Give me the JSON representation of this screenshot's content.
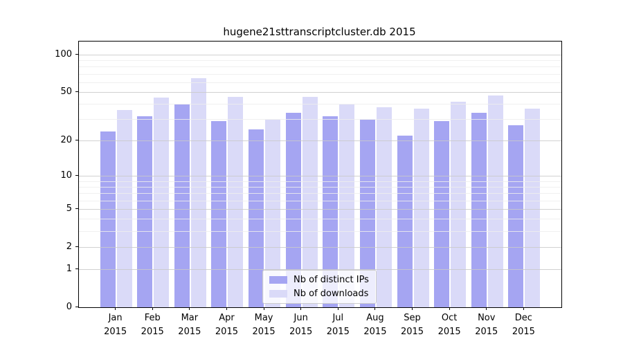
{
  "chart_data": {
    "type": "bar",
    "title": "hugene21sttranscriptcluster.db 2015",
    "months": [
      "Jan",
      "Feb",
      "Mar",
      "Apr",
      "May",
      "Jun",
      "Jul",
      "Aug",
      "Sep",
      "Oct",
      "Nov",
      "Dec"
    ],
    "year": "2015",
    "categories": [
      "Jan 2015",
      "Feb 2015",
      "Mar 2015",
      "Apr 2015",
      "May 2015",
      "Jun 2015",
      "Jul 2015",
      "Aug 2015",
      "Sep 2015",
      "Oct 2015",
      "Nov 2015",
      "Dec 2015"
    ],
    "series": [
      {
        "name": "Nb of distinct IPs",
        "color": "#a5a5f2",
        "values": [
          24,
          32,
          40,
          29,
          25,
          34,
          32,
          30,
          22,
          29,
          34,
          27
        ]
      },
      {
        "name": "Nb of downloads",
        "color": "#dadaf8",
        "values": [
          36,
          45,
          65,
          46,
          30,
          46,
          40,
          38,
          37,
          42,
          47,
          37
        ]
      }
    ],
    "y_axis": {
      "scale": "log10(value+1)",
      "top_value": 128,
      "ticks": [
        0,
        1,
        2,
        5,
        10,
        20,
        50,
        100
      ],
      "minor_ticks": [
        3,
        4,
        6,
        7,
        8,
        9,
        30,
        40,
        60,
        70,
        80,
        90
      ]
    },
    "grid": true,
    "legend_position": "lower center",
    "colors": {
      "grid_major": "#c9c9c9",
      "grid_minor": "#ededed",
      "axis": "#000000",
      "background": "#ffffff"
    }
  }
}
